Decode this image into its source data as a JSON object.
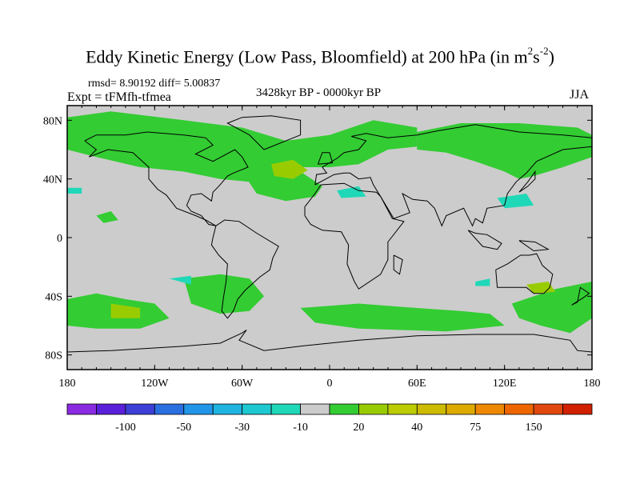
{
  "title": {
    "main": "Eddy Kinetic Energy (Low Pass, Bloomfield) at 200 hPa (in m",
    "sup1": "2",
    "mid": "s",
    "sup2": "-2",
    "end": ")"
  },
  "stats_label": "rmsd= 8.90192 diff= 5.00837",
  "experiment_label": "Expt = tFMfh-tfmea",
  "period_label": "3428kyr BP - 0000kyr BP",
  "season_label": "JJA",
  "chart_data": {
    "type": "heatmap",
    "map_projection": "cylindrical-equidistant",
    "variable": "Eddy Kinetic Energy difference",
    "units": "m2 s-2",
    "xlim": [
      -180,
      180
    ],
    "ylim": [
      -90,
      90
    ],
    "x_ticks": [
      {
        "lon": -180,
        "label": "180"
      },
      {
        "lon": -120,
        "label": "120W"
      },
      {
        "lon": -60,
        "label": "60W"
      },
      {
        "lon": 0,
        "label": "0"
      },
      {
        "lon": 60,
        "label": "60E"
      },
      {
        "lon": 120,
        "label": "120E"
      },
      {
        "lon": 180,
        "label": "180"
      }
    ],
    "y_ticks": [
      {
        "lat": 80,
        "label": "80N"
      },
      {
        "lat": 40,
        "label": "40N"
      },
      {
        "lat": 0,
        "label": "0"
      },
      {
        "lat": -40,
        "label": "40S"
      },
      {
        "lat": -80,
        "label": "80S"
      }
    ],
    "background_color": "#cccccc",
    "colorbar": {
      "colors": [
        "#8a2be2",
        "#5a1fd8",
        "#3c3fd6",
        "#2a6fe0",
        "#2196e8",
        "#1fb4e0",
        "#1ec8d0",
        "#1fd8b8",
        "#cccccc",
        "#33cc33",
        "#99cc00",
        "#bbcc00",
        "#ccbb00",
        "#ddaa00",
        "#ee8800",
        "#ee6600",
        "#e04810",
        "#d02000"
      ],
      "labels": [
        {
          "after_index": 1,
          "text": "-100"
        },
        {
          "after_index": 3,
          "text": "-50"
        },
        {
          "after_index": 5,
          "text": "-30"
        },
        {
          "after_index": 7,
          "text": "-10"
        },
        {
          "after_index": 9,
          "text": "20"
        },
        {
          "after_index": 11,
          "text": "40"
        },
        {
          "after_index": 13,
          "text": "75"
        },
        {
          "after_index": 15,
          "text": "150"
        }
      ]
    },
    "regions": [
      {
        "level": 20,
        "color": "#33cc33",
        "lonlat": [
          [
            -180,
            82
          ],
          [
            -150,
            86
          ],
          [
            -100,
            80
          ],
          [
            -60,
            75
          ],
          [
            -30,
            66
          ],
          [
            0,
            70
          ],
          [
            30,
            80
          ],
          [
            60,
            75
          ],
          [
            60,
            62
          ],
          [
            40,
            60
          ],
          [
            20,
            50
          ],
          [
            0,
            48
          ],
          [
            -20,
            48
          ],
          [
            -35,
            42
          ],
          [
            -40,
            35
          ],
          [
            -55,
            38
          ],
          [
            -75,
            40
          ],
          [
            -100,
            45
          ],
          [
            -130,
            48
          ],
          [
            -160,
            55
          ],
          [
            -180,
            60
          ]
        ]
      },
      {
        "level": 20,
        "color": "#33cc33",
        "lonlat": [
          [
            -60,
            45
          ],
          [
            -40,
            50
          ],
          [
            -20,
            45
          ],
          [
            -5,
            35
          ],
          [
            -10,
            28
          ],
          [
            -30,
            25
          ],
          [
            -50,
            30
          ]
        ]
      },
      {
        "level": 20,
        "color": "#33cc33",
        "lonlat": [
          [
            60,
            72
          ],
          [
            90,
            78
          ],
          [
            130,
            78
          ],
          [
            170,
            75
          ],
          [
            180,
            70
          ],
          [
            180,
            55
          ],
          [
            160,
            48
          ],
          [
            140,
            42
          ],
          [
            130,
            40
          ],
          [
            120,
            45
          ],
          [
            100,
            52
          ],
          [
            80,
            58
          ],
          [
            60,
            60
          ]
        ]
      },
      {
        "level": 20,
        "color": "#33cc33",
        "lonlat": [
          [
            -180,
            -42
          ],
          [
            -160,
            -38
          ],
          [
            -140,
            -42
          ],
          [
            -120,
            -45
          ],
          [
            -110,
            -55
          ],
          [
            -130,
            -62
          ],
          [
            -160,
            -62
          ],
          [
            -180,
            -60
          ]
        ]
      },
      {
        "level": 20,
        "color": "#33cc33",
        "lonlat": [
          [
            -100,
            -28
          ],
          [
            -75,
            -25
          ],
          [
            -55,
            -28
          ],
          [
            -45,
            -40
          ],
          [
            -55,
            -50
          ],
          [
            -75,
            -52
          ],
          [
            -95,
            -45
          ]
        ]
      },
      {
        "level": 20,
        "color": "#33cc33",
        "lonlat": [
          [
            -20,
            -48
          ],
          [
            20,
            -45
          ],
          [
            60,
            -48
          ],
          [
            90,
            -50
          ],
          [
            110,
            -52
          ],
          [
            120,
            -60
          ],
          [
            80,
            -64
          ],
          [
            20,
            -62
          ],
          [
            -10,
            -58
          ]
        ]
      },
      {
        "level": 20,
        "color": "#33cc33",
        "lonlat": [
          [
            125,
            -45
          ],
          [
            155,
            -35
          ],
          [
            180,
            -30
          ],
          [
            180,
            -55
          ],
          [
            165,
            -65
          ],
          [
            145,
            -60
          ],
          [
            130,
            -55
          ]
        ]
      },
      {
        "level": 20,
        "color": "#33cc33",
        "lonlat": [
          [
            -160,
            15
          ],
          [
            -150,
            18
          ],
          [
            -145,
            12
          ],
          [
            -155,
            10
          ]
        ]
      },
      {
        "level": 40,
        "color": "#99cc00",
        "lonlat": [
          [
            -40,
            50
          ],
          [
            -25,
            53
          ],
          [
            -15,
            46
          ],
          [
            -25,
            40
          ],
          [
            -38,
            42
          ]
        ]
      },
      {
        "level": 40,
        "color": "#99cc00",
        "lonlat": [
          [
            -150,
            -45
          ],
          [
            -130,
            -48
          ],
          [
            -130,
            -55
          ],
          [
            -150,
            -55
          ]
        ]
      },
      {
        "level": 40,
        "color": "#99cc00",
        "lonlat": [
          [
            135,
            -32
          ],
          [
            150,
            -30
          ],
          [
            155,
            -37
          ],
          [
            140,
            -38
          ]
        ]
      },
      {
        "level": -10,
        "color": "#1fd8b8",
        "lonlat": [
          [
            115,
            27
          ],
          [
            135,
            30
          ],
          [
            140,
            22
          ],
          [
            120,
            20
          ]
        ]
      },
      {
        "level": -10,
        "color": "#1fd8b8",
        "lonlat": [
          [
            -110,
            -28
          ],
          [
            -95,
            -26
          ],
          [
            -95,
            -32
          ],
          -110,
          -32
        ]
      },
      {
        "level": -10,
        "color": "#1fd8b8",
        "lonlat": [
          [
            5,
            32
          ],
          [
            20,
            35
          ],
          [
            25,
            28
          ],
          [
            8,
            27
          ]
        ]
      },
      {
        "level": -10,
        "color": "#1fd8b8",
        "lonlat": [
          [
            -180,
            34
          ],
          [
            -170,
            34
          ],
          [
            -170,
            30
          ],
          [
            -180,
            30
          ]
        ]
      },
      {
        "level": -10,
        "color": "#1fd8b8",
        "lonlat": [
          [
            100,
            -30
          ],
          [
            110,
            -28
          ],
          [
            110,
            -33
          ],
          [
            100,
            -33
          ]
        ]
      }
    ]
  }
}
